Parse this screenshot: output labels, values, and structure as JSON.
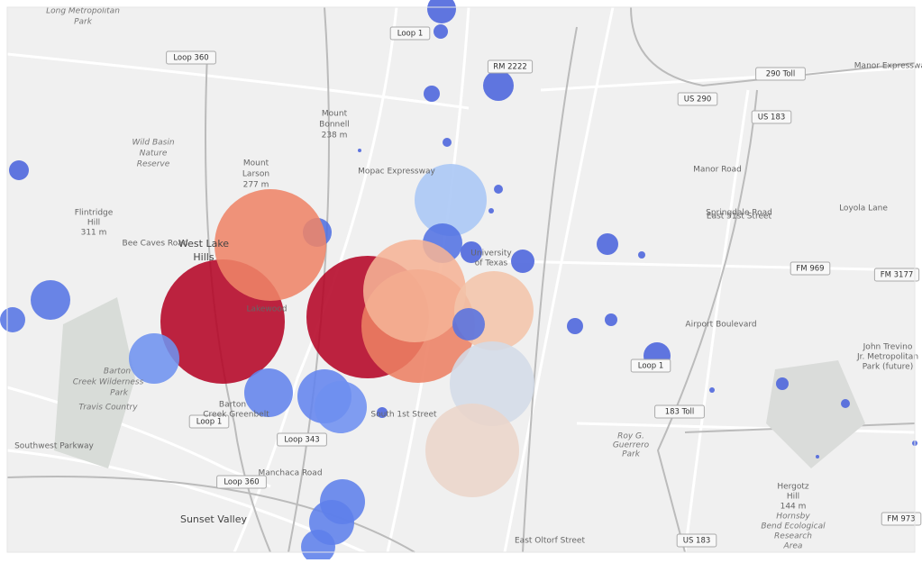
{
  "map": {
    "shields": [
      "Loop 360",
      "Loop 1",
      "RM 2222",
      "290 Toll",
      "US 290",
      "US 183",
      "FM 969",
      "FM 3177",
      "Loop 1",
      "183 Toll",
      "Loop 1",
      "Loop 343",
      "Loop 360",
      "US 183",
      "FM 973"
    ],
    "labels": [
      "Long Metropolitan",
      "Park",
      "Mount",
      "Bonnell",
      "238 m",
      "Mount",
      "Larson",
      "277 m",
      "Wild Basin",
      "Nature",
      "Reserve",
      "Flintridge",
      "Hill",
      "311 m",
      "West Lake",
      "Hills",
      "Barton",
      "Creek Wilderness",
      "Park",
      "Travis Country",
      "Barton",
      "Creek Greenbelt",
      "Sunset Valley",
      "Southwest Parkway",
      "University",
      "of Texas",
      "Roy G.",
      "Guerrero",
      "Park",
      "John Trevino",
      "Jr. Metropolitan",
      "Park (future)",
      "Hergotz",
      "Hill",
      "144 m",
      "Hornsby",
      "Bend Ecological",
      "Research",
      "Area",
      "Manor Expressway",
      "Loyola Lane",
      "East 51st Street",
      "Manor Road",
      "Springdale Road",
      "Airport Boulevard",
      "South 1st Street",
      "Manchaca Road",
      "East Oltorf Street",
      "Mopac Expressway",
      "Bee Caves Road",
      "Lakewood"
    ]
  }
}
